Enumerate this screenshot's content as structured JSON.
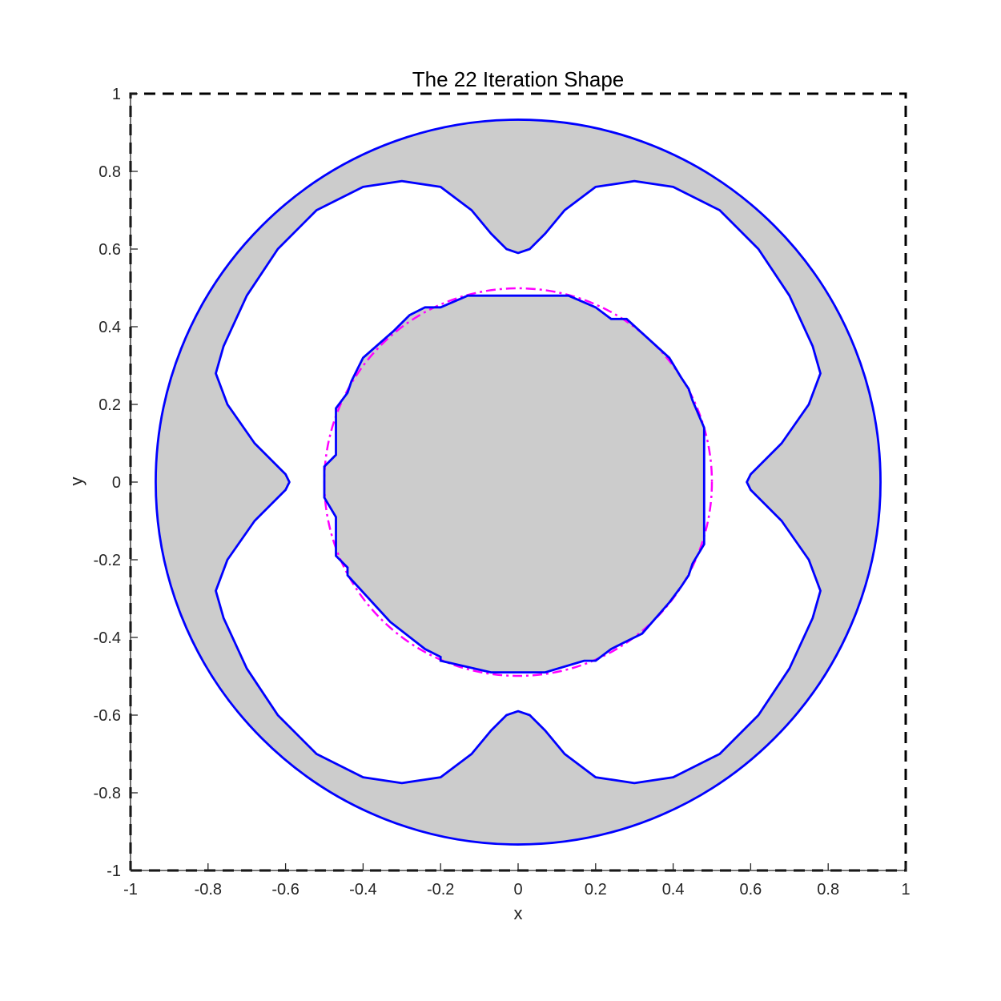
{
  "chart_data": {
    "type": "line",
    "title": "The 22 Iteration Shape",
    "xlabel": "x",
    "ylabel": "y",
    "xlim": [
      -1,
      1
    ],
    "ylim": [
      -1,
      1
    ],
    "xticks": [
      "-1",
      "-0.8",
      "-0.6",
      "-0.4",
      "-0.2",
      "0",
      "0.2",
      "0.4",
      "0.6",
      "0.8",
      "1"
    ],
    "yticks": [
      "-1",
      "-0.8",
      "-0.6",
      "-0.4",
      "-0.2",
      "0",
      "0.2",
      "0.4",
      "0.6",
      "0.8",
      "1"
    ],
    "grid": false,
    "colors": {
      "fill": "#cccccc",
      "contour": "#0000ff",
      "target_circle": "#ff00ff",
      "domain_boundary": "#000000",
      "axes": "#262626"
    },
    "series": [
      {
        "style": "dashed",
        "color": "#000000",
        "x": [
          -1,
          1,
          1,
          -1,
          -1
        ],
        "y": [
          -1,
          -1,
          1,
          1,
          -1
        ]
      },
      {
        "style": "dash-dot",
        "color": "#ff00ff",
        "shape": "circle",
        "center": [
          0,
          0
        ],
        "radius": 0.5
      },
      {
        "style": "solid",
        "color": "#0000ff",
        "shape": "circle",
        "center": [
          0,
          0
        ],
        "radius": 0.935
      },
      {
        "style": "solid",
        "color": "#0000ff",
        "shape": "closed-curve",
        "x": [
          0,
          0.03,
          0.07,
          0.12,
          0.2,
          0.3,
          0.4,
          0.52,
          0.62,
          0.7,
          0.76,
          0.78,
          0.75,
          0.68,
          0.6,
          0.59,
          0.6,
          0.68,
          0.75,
          0.78,
          0.76,
          0.7,
          0.62,
          0.52,
          0.4,
          0.3,
          0.2,
          0.12,
          0.07,
          0.03,
          0,
          -0.03,
          -0.07,
          -0.12,
          -0.2,
          -0.3,
          -0.4,
          -0.52,
          -0.62,
          -0.7,
          -0.76,
          -0.78,
          -0.75,
          -0.68,
          -0.6,
          -0.59,
          -0.6,
          -0.68,
          -0.75,
          -0.78,
          -0.76,
          -0.7,
          -0.62,
          -0.52,
          -0.4,
          -0.3,
          -0.2,
          -0.12,
          -0.07,
          -0.03,
          0
        ],
        "y": [
          0.59,
          0.6,
          0.64,
          0.7,
          0.76,
          0.775,
          0.76,
          0.7,
          0.6,
          0.48,
          0.35,
          0.28,
          0.2,
          0.1,
          0.02,
          0,
          -0.02,
          -0.1,
          -0.2,
          -0.28,
          -0.35,
          -0.48,
          -0.6,
          -0.7,
          -0.76,
          -0.775,
          -0.76,
          -0.7,
          -0.64,
          -0.6,
          -0.59,
          -0.6,
          -0.64,
          -0.7,
          -0.76,
          -0.775,
          -0.76,
          -0.7,
          -0.6,
          -0.48,
          -0.35,
          -0.28,
          -0.2,
          -0.1,
          -0.02,
          0,
          0.02,
          0.1,
          0.2,
          0.28,
          0.35,
          0.48,
          0.6,
          0.7,
          0.76,
          0.775,
          0.76,
          0.7,
          0.64,
          0.6,
          0.59
        ]
      },
      {
        "style": "solid",
        "color": "#0000ff",
        "shape": "closed-polyline",
        "x": [
          0.13,
          -0.13,
          -0.2,
          -0.24,
          -0.28,
          -0.32,
          -0.4,
          -0.43,
          -0.44,
          -0.47,
          -0.47,
          -0.5,
          -0.5,
          -0.47,
          -0.47,
          -0.44,
          -0.44,
          -0.33,
          -0.24,
          -0.2,
          -0.2,
          -0.07,
          0.07,
          0.17,
          0.2,
          0.24,
          0.28,
          0.32,
          0.39,
          0.42,
          0.44,
          0.45,
          0.48,
          0.48,
          0.45,
          0.44,
          0.42,
          0.39,
          0.28,
          0.24,
          0.2,
          0.13
        ],
        "y": [
          0.48,
          0.48,
          0.45,
          0.45,
          0.43,
          0.39,
          0.32,
          0.26,
          0.23,
          0.19,
          0.07,
          0.04,
          -0.04,
          -0.09,
          -0.19,
          -0.22,
          -0.24,
          -0.36,
          -0.43,
          -0.45,
          -0.46,
          -0.49,
          -0.49,
          -0.46,
          -0.46,
          -0.43,
          -0.41,
          -0.39,
          -0.31,
          -0.27,
          -0.24,
          -0.21,
          -0.16,
          0.14,
          0.21,
          0.24,
          0.27,
          0.32,
          0.42,
          0.42,
          0.45,
          0.48
        ]
      }
    ]
  }
}
